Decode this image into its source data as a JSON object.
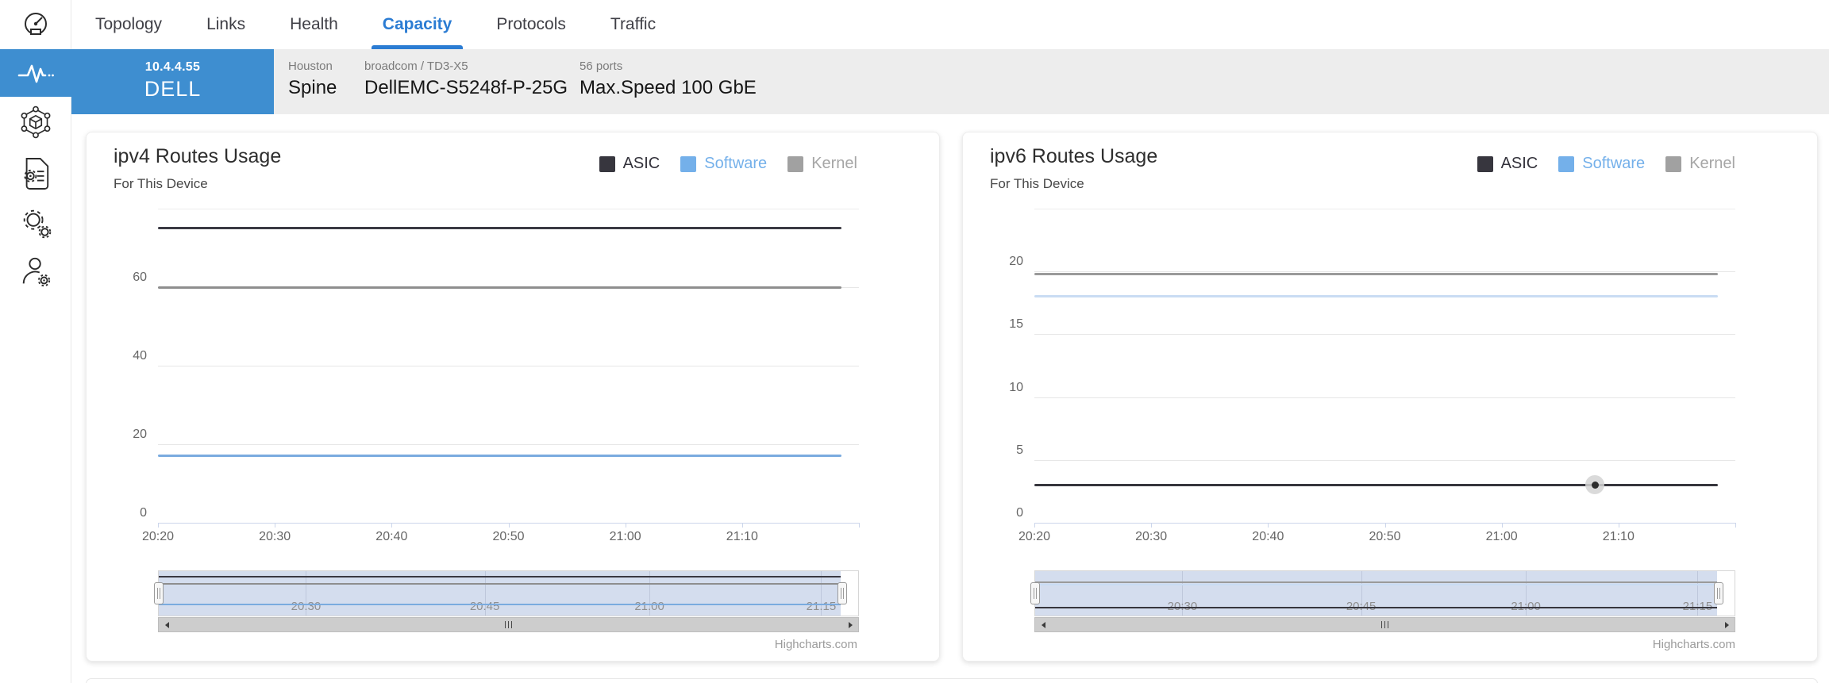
{
  "colors": {
    "accent": "#3e8ed0",
    "active_tab": "#2b7cd3",
    "device_bar_bg": "#ededed",
    "navigator_mask": "rgba(102,133,194,0.28)"
  },
  "sidebar": {
    "icons": [
      "gauge-logo",
      "pulse-monitor",
      "topology-cube",
      "config-file",
      "settings-gears",
      "user-settings"
    ]
  },
  "tabs": {
    "items": [
      {
        "label": "Topology",
        "active": false
      },
      {
        "label": "Links",
        "active": false
      },
      {
        "label": "Health",
        "active": false
      },
      {
        "label": "Capacity",
        "active": true
      },
      {
        "label": "Protocols",
        "active": false
      },
      {
        "label": "Traffic",
        "active": false
      }
    ]
  },
  "device": {
    "ip": "10.4.4.55",
    "name": "DELL",
    "location": "Houston",
    "role": "Spine",
    "platform": "broadcom / TD3-X5",
    "model": "DellEMC-S5248f-P-25G",
    "ports": "56 ports",
    "max_speed": "Max.Speed 100 GbE"
  },
  "chart_data": [
    {
      "type": "line",
      "title": "ipv4 Routes Usage",
      "subtitle": "For This Device",
      "x_labels": [
        "20:20",
        "20:30",
        "20:40",
        "20:50",
        "21:00",
        "21:10"
      ],
      "y_ticks": [
        0,
        20,
        40,
        60
      ],
      "ylim": [
        0,
        80
      ],
      "grid": true,
      "legend_position": "top-right",
      "series": [
        {
          "name": "ASIC",
          "value": 75,
          "color": "#37363e",
          "line_color": "#3a3943",
          "label_color": "#33323b"
        },
        {
          "name": "Software",
          "value": 17,
          "color": "#74b0ea",
          "line_color": "#7aabdf",
          "label_color": "#74b0ea"
        },
        {
          "name": "Kernel",
          "value": 60,
          "color": "#a1a1a1",
          "line_color": "#8e8e8e",
          "label_color": "#a6a6a6"
        }
      ],
      "navigator_labels": [
        "20:30",
        "20:45",
        "21:00",
        "21:15"
      ],
      "credit": "Highcharts.com"
    },
    {
      "type": "line",
      "title": "ipv6 Routes Usage",
      "subtitle": "For This Device",
      "x_labels": [
        "20:20",
        "20:30",
        "20:40",
        "20:50",
        "21:00",
        "21:10"
      ],
      "y_ticks": [
        0,
        5,
        10,
        15,
        20
      ],
      "ylim": [
        0,
        25
      ],
      "grid": true,
      "legend_position": "top-right",
      "series": [
        {
          "name": "ASIC",
          "value": 3,
          "color": "#37363e",
          "line_color": "#36353d",
          "label_color": "#33323b",
          "marker": {
            "x_frac": 0.8
          }
        },
        {
          "name": "Software",
          "value": 18,
          "color": "#74b0ea",
          "line_color": "#c9dcf3",
          "label_color": "#74b0ea"
        },
        {
          "name": "Kernel",
          "value": 19.8,
          "color": "#a1a1a1",
          "line_color": "#9a9a9a",
          "label_color": "#a6a6a6"
        }
      ],
      "navigator_labels": [
        "20:30",
        "20:45",
        "21:00",
        "21:15"
      ],
      "credit": "Highcharts.com"
    }
  ]
}
